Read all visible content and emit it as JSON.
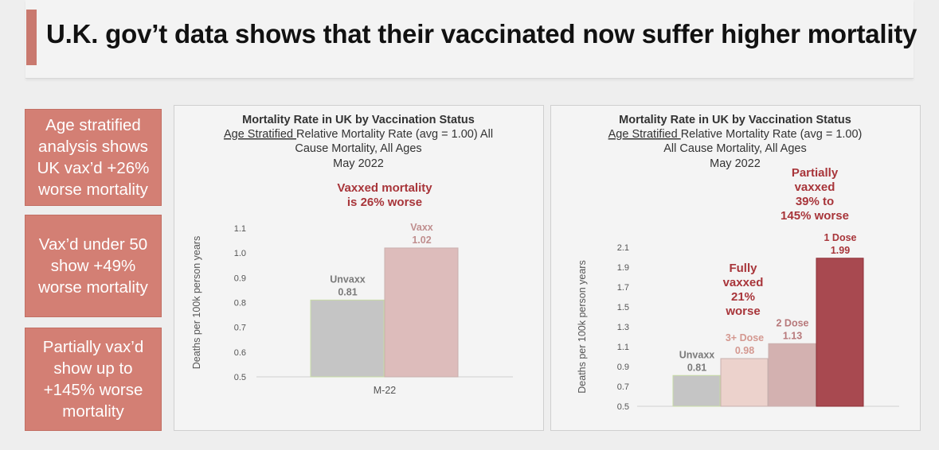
{
  "title": "U.K. gov’t data shows that their vaccinated now suffer higher mortality",
  "callouts": [
    {
      "lines": [
        "Age stratified",
        "analysis shows",
        "UK vax’d +26%",
        "worse mortality"
      ]
    },
    {
      "lines": [
        "Vax’d under 50",
        "show +49%",
        "worse mortality"
      ]
    },
    {
      "lines": [
        "Partially vax’d",
        "show up to",
        "+145% worse",
        "mortality"
      ]
    }
  ],
  "colors": {
    "accent": "#c9796f",
    "callout_bg": "#d37f74",
    "annotation_red": "#a8353a",
    "unvaxx_bar": "#c5c5c5",
    "vaxx_bar": "#ddbcbb",
    "three_dose_bar": "#ecd2cc",
    "two_dose_bar": "#d3b1b0",
    "one_dose_bar": "#a84950"
  },
  "chart_data": [
    {
      "type": "bar",
      "title": "Mortality Rate in UK by Vaccination Status",
      "subtitle_underlined": "Age Stratified ",
      "subtitle_rest": "Relative Mortality Rate (avg = 1.00) All",
      "subtitle_line2": "Cause Mortality, All Ages",
      "subtitle_line3": "May 2022",
      "ylabel": "Deaths per 100k person years",
      "ylim": [
        0.5,
        1.1
      ],
      "yticks": [
        "1.1",
        "1.0",
        "0.9",
        "0.8",
        "0.7",
        "0.6",
        "0.5"
      ],
      "category_label": "M-22",
      "bars": [
        {
          "name": "Unvaxx",
          "value": 0.81,
          "value_label": "0.81",
          "color_key": "unvaxx_bar",
          "label_color": "#7a7a7a"
        },
        {
          "name": "Vaxx",
          "value": 1.02,
          "value_label": "1.02",
          "color_key": "vaxx_bar",
          "label_color": "#c08f8f"
        }
      ],
      "annotation": {
        "lines": [
          "Vaxxed  mortality",
          "is 26% worse"
        ]
      }
    },
    {
      "type": "bar",
      "title": "Mortality Rate in UK by Vaccination Status",
      "subtitle_underlined": "Age Stratified ",
      "subtitle_rest": "Relative Mortality Rate (avg = 1.00)",
      "subtitle_line2": "All Cause Mortality, All Ages",
      "subtitle_line3": "May 2022",
      "ylabel": "Deaths per 100k person years",
      "ylim": [
        0.5,
        2.1
      ],
      "yticks": [
        "2.1",
        "1.9",
        "1.7",
        "1.5",
        "1.3",
        "1.1",
        "0.9",
        "0.7",
        "0.5"
      ],
      "bars": [
        {
          "name": "Unvaxx",
          "value": 0.81,
          "value_label": "0.81",
          "color_key": "unvaxx_bar",
          "label_color": "#7a7a7a"
        },
        {
          "name": "3+ Dose",
          "value": 0.98,
          "value_label": "0.98",
          "color_key": "three_dose_bar",
          "label_color": "#d49890"
        },
        {
          "name": "2 Dose",
          "value": 1.13,
          "value_label": "1.13",
          "color_key": "two_dose_bar",
          "label_color": "#b7787a"
        },
        {
          "name": "1 Dose",
          "value": 1.99,
          "value_label": "1.99",
          "color_key": "one_dose_bar",
          "label_color": "#a8353a"
        }
      ],
      "annotations": [
        {
          "lines": [
            "Fully",
            "vaxxed",
            "21%",
            "worse"
          ]
        },
        {
          "lines": [
            "Partially",
            "vaxxed",
            "39% to",
            "145% worse"
          ]
        }
      ]
    }
  ]
}
